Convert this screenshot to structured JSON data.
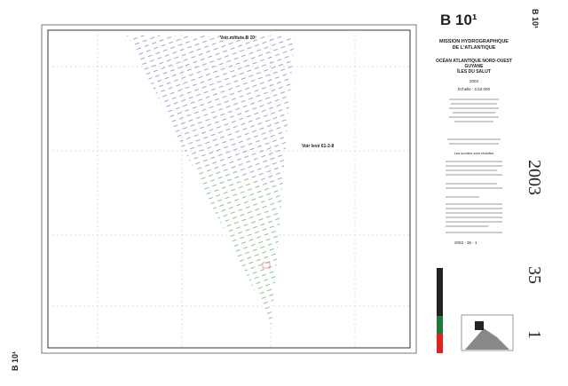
{
  "header": {
    "sheet": "B 10¹",
    "mission": [
      "MISSION HYDROGRAPHIQUE",
      "DE L'ATLANTIQUE"
    ],
    "region": [
      "OCÉAN ATLANTIQUE NORD-OUEST",
      "GUYANE",
      "ÎLES DU SALUT"
    ],
    "year": "2003",
    "scale": "Échelle : 1/10 000"
  },
  "map": {
    "note_top": "Voir minute B 10²",
    "note_mid": "Voir levé 61-2-8"
  },
  "legend": {
    "heading": "Les sondes sont réduites",
    "stamp": "2003 - 35 - 1"
  },
  "handwritten": [
    "2003",
    "35",
    "1"
  ]
}
